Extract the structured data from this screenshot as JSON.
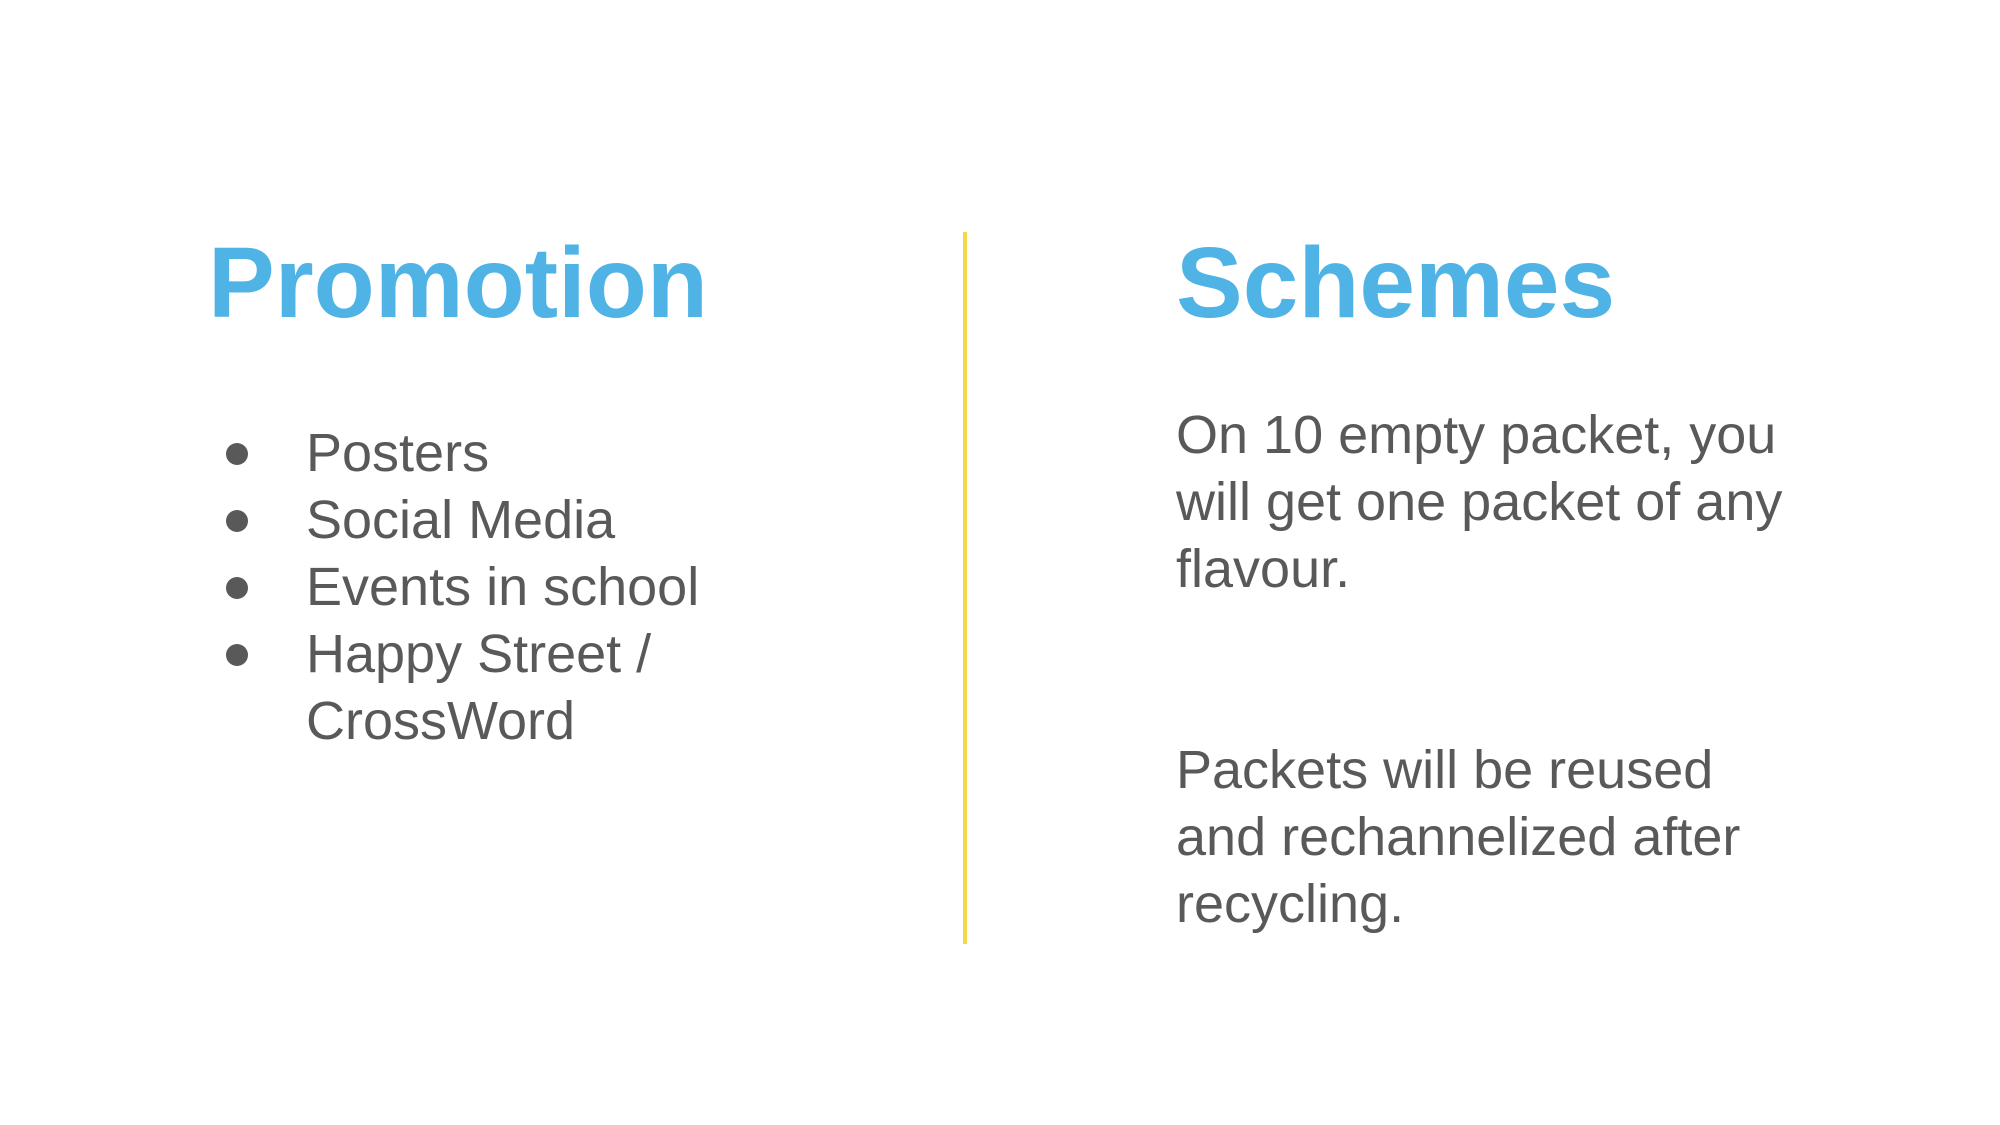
{
  "left_column": {
    "heading": "Promotion",
    "items": [
      "Posters",
      "Social Media",
      "Events in school",
      "Happy Street / CrossWord"
    ]
  },
  "right_column": {
    "heading": "Schemes",
    "paragraphs": [
      "On 10 empty packet, you will get one packet of any flavour.",
      "Packets will be reused and rechannelized after recycling."
    ]
  },
  "colors": {
    "heading": "#4fb3e6",
    "body_text": "#595959",
    "divider": "#f4d848",
    "background": "#ffffff"
  }
}
